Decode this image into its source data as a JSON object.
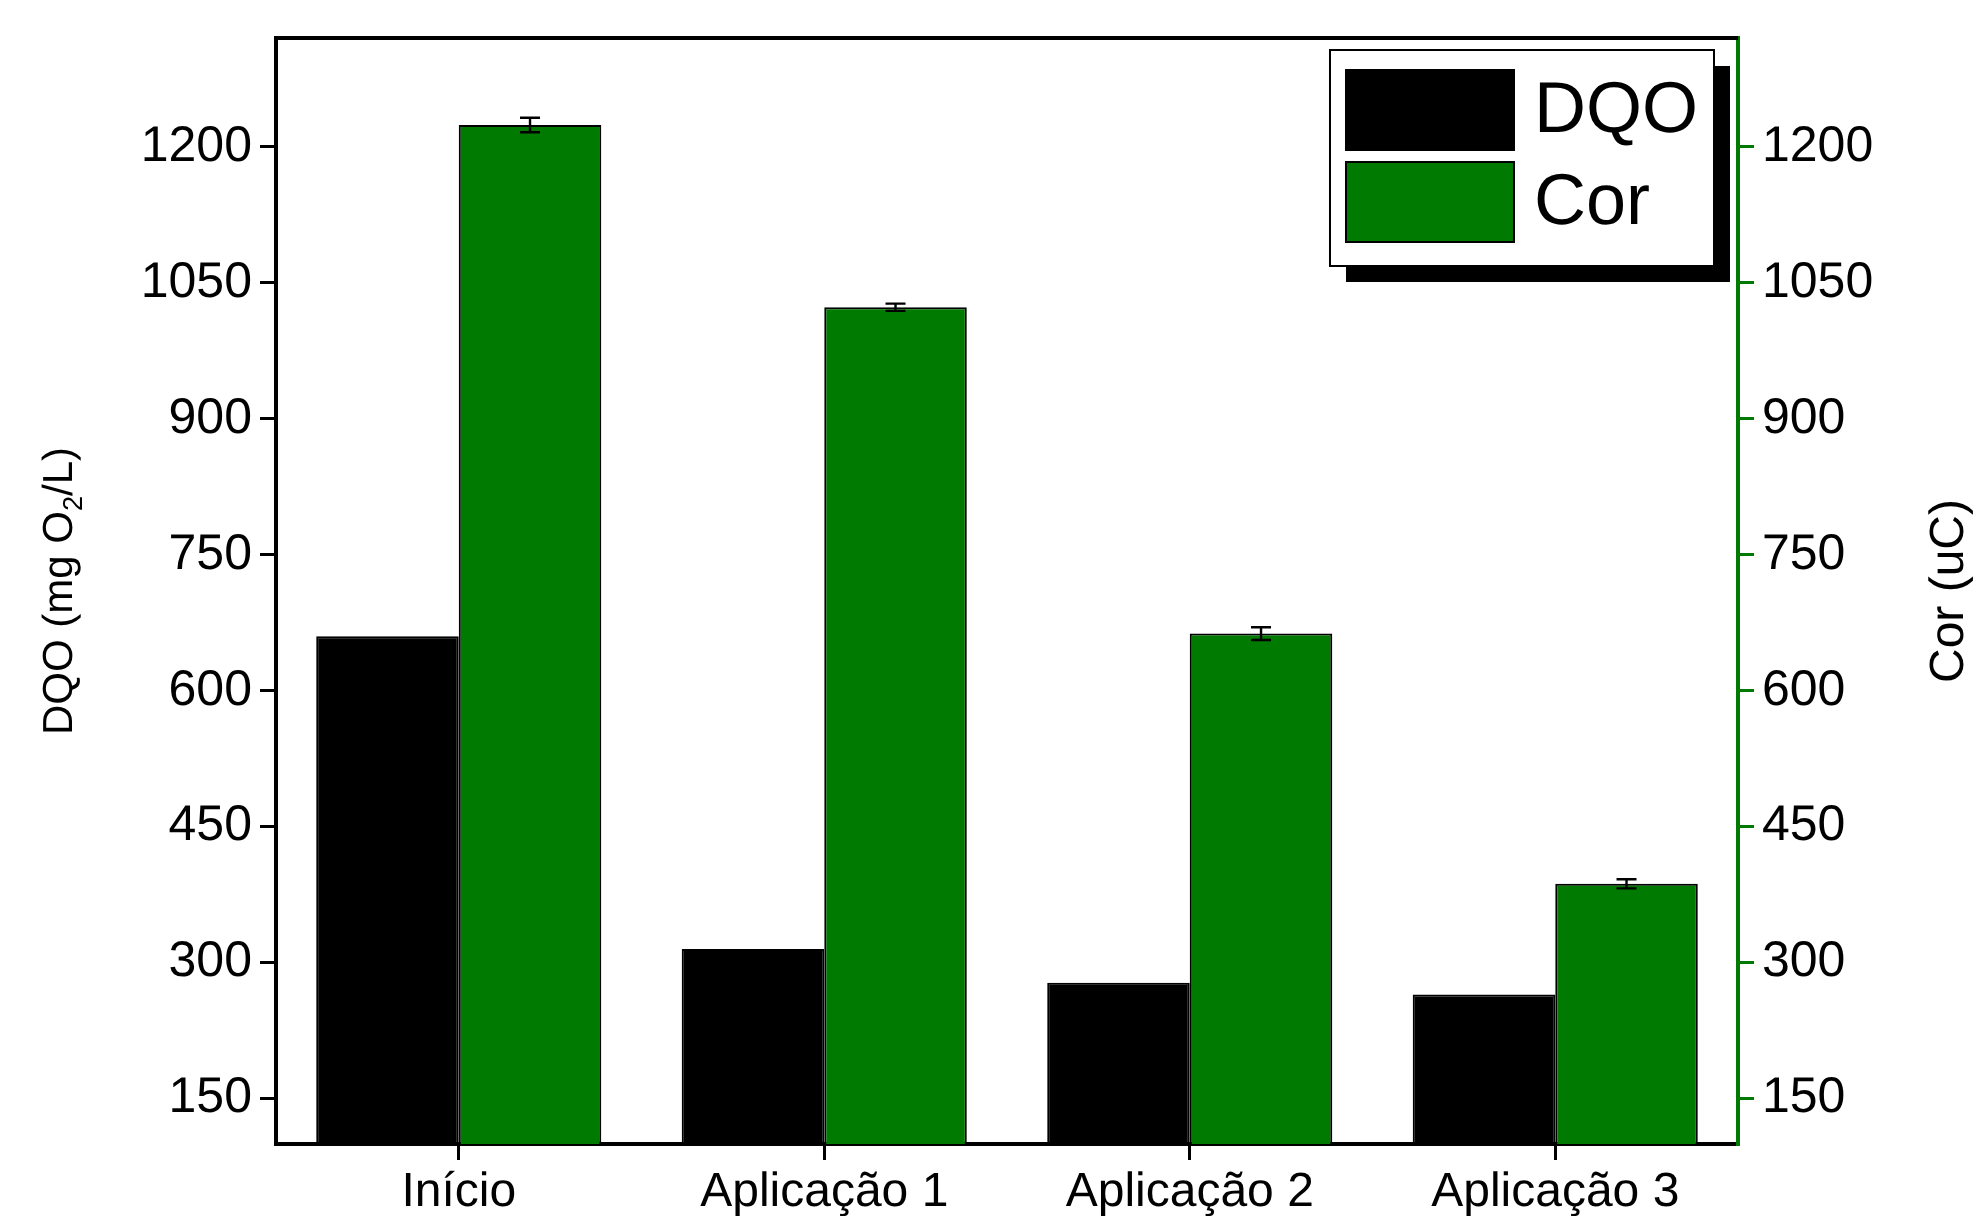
{
  "chart_data": {
    "type": "bar",
    "categories": [
      "Início",
      "Aplicação 1",
      "Aplicação 2",
      "Aplicação 3"
    ],
    "series": [
      {
        "name": "DQO",
        "color": "#000000",
        "values": [
          660,
          315,
          278,
          265
        ]
      },
      {
        "name": "Cor",
        "color": "#007a00",
        "axis": "y2",
        "values": [
          1224,
          1023,
          663,
          387
        ],
        "errors": [
          8,
          4,
          7,
          5
        ]
      }
    ],
    "ylabel": "DQO (mg O$_{2}$/L)",
    "y2label": "Cor (uC)",
    "ylim": [
      100,
      1320
    ],
    "yticks": [
      150,
      300,
      450,
      600,
      750,
      900,
      1050,
      1200
    ],
    "y2lim": [
      100,
      1320
    ],
    "y2ticks": [
      150,
      300,
      450,
      600,
      750,
      900,
      1050,
      1200
    ],
    "legend": "top right",
    "grid": false
  }
}
